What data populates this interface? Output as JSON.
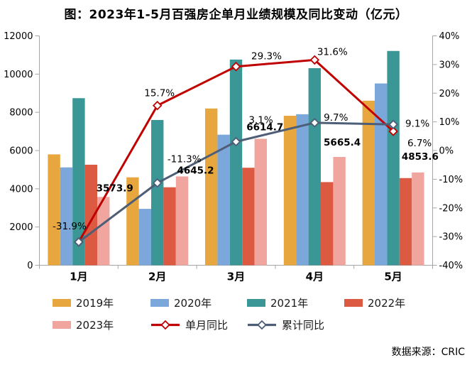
{
  "title": "图：2023年1-5月百强房企单月业绩规模及同比变动（亿元）",
  "source": "数据来源：CRIC",
  "chart_data": {
    "type": "bar+line combo",
    "title": "图：2023年1-5月百强房企单月业绩规模及同比变动（亿元）",
    "categories": [
      "1月",
      "2月",
      "3月",
      "4月",
      "5月"
    ],
    "bar_series": [
      {
        "name": "2019年",
        "color": "#E8A73E",
        "values": [
          5800,
          4600,
          8200,
          7820,
          8610
        ]
      },
      {
        "name": "2020年",
        "color": "#7BA7DA",
        "values": [
          5120,
          2950,
          6830,
          7900,
          9510
        ]
      },
      {
        "name": "2021年",
        "color": "#3B9696",
        "values": [
          8740,
          7600,
          10760,
          10310,
          11210
        ]
      },
      {
        "name": "2022年",
        "color": "#DD5A42",
        "values": [
          5260,
          4080,
          5100,
          4350,
          4560
        ]
      },
      {
        "name": "2023年",
        "color": "#F0A59E",
        "values": [
          3573.9,
          4645.2,
          6614.7,
          5665.4,
          4853.6
        ],
        "labels": [
          "3573.9",
          "4645.2",
          "6614.7",
          "5665.4",
          "4853.6"
        ]
      }
    ],
    "line_series": [
      {
        "name": "单月同比",
        "color": "#C00000",
        "values_pct": [
          -31.9,
          15.7,
          29.3,
          31.6,
          6.7
        ],
        "labels": [
          "-31.9%",
          "15.7%",
          "29.3%",
          "31.6%",
          "6.7%"
        ]
      },
      {
        "name": "累计同比",
        "color": "#4D5E76",
        "values_pct": [
          -31.9,
          -11.3,
          3.1,
          9.7,
          9.1
        ],
        "labels": [
          null,
          "-11.3%",
          "3.1%",
          "9.7%",
          "9.1%"
        ]
      }
    ],
    "left_axis": {
      "min": 0,
      "max": 12000,
      "step": 2000,
      "ticks": [
        "0",
        "2000",
        "4000",
        "6000",
        "8000",
        "10000",
        "12000"
      ]
    },
    "right_axis": {
      "min": -40,
      "max": 40,
      "step": 10,
      "ticks": [
        "-40%",
        "-30%",
        "-20%",
        "-10%",
        "0%",
        "10%",
        "20%",
        "30%",
        "40%"
      ]
    },
    "legend_position": "bottom",
    "grid": "off"
  }
}
